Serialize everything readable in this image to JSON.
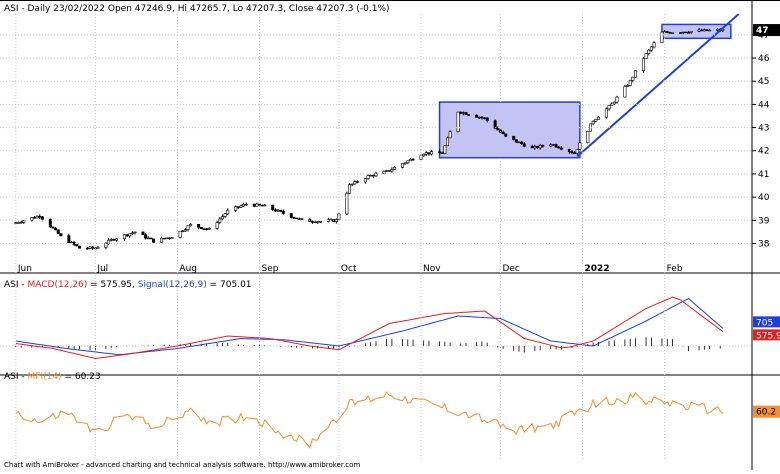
{
  "header": {
    "main": "ASI - Daily 23/02/2022 Open 47246.9, Hi 47265.7, Lo 47207.3, Close 47207.3 (-0.1%)",
    "macd_prefix": "ASI - ",
    "macd_name": "MACD(12,26)",
    "macd_value": " = 575.95, ",
    "signal_name": "Signal(12,26,9)",
    "signal_value": " = 705.01",
    "mfi_prefix": "ASI - ",
    "mfi_name": "MFI(14)",
    "mfi_value": " = 60.23"
  },
  "footer": "Chart with AmiBroker - advanced charting and technical analysis software. http://www.amibroker.com",
  "colors": {
    "up": "#ffffff",
    "down": "#000000",
    "macd": "#e02020",
    "signal": "#1f3fdd",
    "mfi": "#f09030",
    "box_fill": "#b8b8f4",
    "box_stroke": "#1f3fdd",
    "trendline": "#1f3fdd"
  },
  "chart_data": [
    {
      "type": "candlestick",
      "title": "ASI - Daily 23/02/2022",
      "x_tick_labels": [
        "Jun",
        "Jul",
        "Aug",
        "Sep",
        "Oct",
        "Nov",
        "Dec",
        "2022",
        "Feb"
      ],
      "y_tick_labels": [
        "38",
        "39",
        "40",
        "41",
        "42",
        "43",
        "44",
        "45",
        "46",
        "47"
      ],
      "last_value_label": "47",
      "ylim": [
        37200,
        47900
      ],
      "path_points": [
        {
          "d": "2021-06-01",
          "v": 38900
        },
        {
          "d": "2021-06-10",
          "v": 39200
        },
        {
          "d": "2021-06-18",
          "v": 38300
        },
        {
          "d": "2021-06-25",
          "v": 37800
        },
        {
          "d": "2021-07-01",
          "v": 37800
        },
        {
          "d": "2021-07-08",
          "v": 38200
        },
        {
          "d": "2021-07-16",
          "v": 38500
        },
        {
          "d": "2021-07-23",
          "v": 38100
        },
        {
          "d": "2021-07-30",
          "v": 38300
        },
        {
          "d": "2021-08-06",
          "v": 38800
        },
        {
          "d": "2021-08-13",
          "v": 38600
        },
        {
          "d": "2021-08-20",
          "v": 39400
        },
        {
          "d": "2021-08-27",
          "v": 39700
        },
        {
          "d": "2021-09-03",
          "v": 39600
        },
        {
          "d": "2021-09-10",
          "v": 39300
        },
        {
          "d": "2021-09-17",
          "v": 39000
        },
        {
          "d": "2021-09-24",
          "v": 38950
        },
        {
          "d": "2021-09-30",
          "v": 39000
        },
        {
          "d": "2021-10-05",
          "v": 40500
        },
        {
          "d": "2021-10-12",
          "v": 40900
        },
        {
          "d": "2021-10-19",
          "v": 41100
        },
        {
          "d": "2021-10-26",
          "v": 41500
        },
        {
          "d": "2021-11-02",
          "v": 41900
        },
        {
          "d": "2021-11-09",
          "v": 41900
        },
        {
          "d": "2021-11-15",
          "v": 43700
        },
        {
          "d": "2021-11-25",
          "v": 43400
        },
        {
          "d": "2021-12-03",
          "v": 42600
        },
        {
          "d": "2021-12-13",
          "v": 42100
        },
        {
          "d": "2021-12-20",
          "v": 42300
        },
        {
          "d": "2021-12-29",
          "v": 41900
        },
        {
          "d": "2022-01-05",
          "v": 43300
        },
        {
          "d": "2022-01-12",
          "v": 44000
        },
        {
          "d": "2022-01-19",
          "v": 45000
        },
        {
          "d": "2022-01-24",
          "v": 46000
        },
        {
          "d": "2022-01-31",
          "v": 47100
        },
        {
          "d": "2022-02-10",
          "v": 47150
        },
        {
          "d": "2022-02-23",
          "v": 47207
        }
      ],
      "rectangles": [
        {
          "from": "2021-11-08",
          "to": "2021-12-31",
          "low": 41700,
          "high": 44100
        },
        {
          "from": "2022-01-31",
          "to": "2022-02-26",
          "low": 46850,
          "high": 47450
        }
      ],
      "trendline": {
        "from": {
          "d": "2021-12-30",
          "v": 41750
        },
        "to": {
          "d": "2022-03-01",
          "v": 47900
        }
      }
    },
    {
      "type": "line",
      "series": [
        {
          "name": "MACD(12,26)",
          "value_label": "575.95",
          "points": [
            {
              "d": "2021-06-01",
              "v": 100
            },
            {
              "d": "2021-06-15",
              "v": -100
            },
            {
              "d": "2021-07-01",
              "v": -500
            },
            {
              "d": "2021-07-15",
              "v": -300
            },
            {
              "d": "2021-08-01",
              "v": 0
            },
            {
              "d": "2021-08-20",
              "v": 400
            },
            {
              "d": "2021-09-05",
              "v": 300
            },
            {
              "d": "2021-09-20",
              "v": 0
            },
            {
              "d": "2021-10-01",
              "v": -150
            },
            {
              "d": "2021-10-20",
              "v": 900
            },
            {
              "d": "2021-11-10",
              "v": 1300
            },
            {
              "d": "2021-11-25",
              "v": 1400
            },
            {
              "d": "2021-12-10",
              "v": 300
            },
            {
              "d": "2021-12-25",
              "v": -100
            },
            {
              "d": "2022-01-05",
              "v": 200
            },
            {
              "d": "2022-01-25",
              "v": 1500
            },
            {
              "d": "2022-02-05",
              "v": 2000
            },
            {
              "d": "2022-02-23",
              "v": 576
            }
          ]
        },
        {
          "name": "Signal(12,26,9)",
          "value_label": "705",
          "points": [
            {
              "d": "2021-06-01",
              "v": 200
            },
            {
              "d": "2021-06-20",
              "v": -100
            },
            {
              "d": "2021-07-10",
              "v": -350
            },
            {
              "d": "2021-08-01",
              "v": -100
            },
            {
              "d": "2021-08-25",
              "v": 300
            },
            {
              "d": "2021-09-10",
              "v": 250
            },
            {
              "d": "2021-10-01",
              "v": 0
            },
            {
              "d": "2021-10-25",
              "v": 600
            },
            {
              "d": "2021-11-15",
              "v": 1200
            },
            {
              "d": "2021-12-01",
              "v": 1100
            },
            {
              "d": "2021-12-20",
              "v": 200
            },
            {
              "d": "2022-01-05",
              "v": 0
            },
            {
              "d": "2022-01-25",
              "v": 1000
            },
            {
              "d": "2022-02-10",
              "v": 1900
            },
            {
              "d": "2022-02-23",
              "v": 705
            }
          ]
        }
      ],
      "histogram_ylim": [
        -800,
        2200
      ]
    },
    {
      "type": "line",
      "series": [
        {
          "name": "MFI(14)",
          "value_label": "60.2",
          "points": [
            {
              "d": "2021-06-01",
              "v": 60
            },
            {
              "d": "2021-06-10",
              "v": 45
            },
            {
              "d": "2021-06-20",
              "v": 60
            },
            {
              "d": "2021-07-01",
              "v": 30
            },
            {
              "d": "2021-07-12",
              "v": 55
            },
            {
              "d": "2021-07-25",
              "v": 40
            },
            {
              "d": "2021-08-05",
              "v": 60
            },
            {
              "d": "2021-08-15",
              "v": 45
            },
            {
              "d": "2021-08-28",
              "v": 55
            },
            {
              "d": "2021-09-10",
              "v": 30
            },
            {
              "d": "2021-09-20",
              "v": 15
            },
            {
              "d": "2021-10-05",
              "v": 70
            },
            {
              "d": "2021-10-20",
              "v": 85
            },
            {
              "d": "2021-11-05",
              "v": 70
            },
            {
              "d": "2021-11-20",
              "v": 55
            },
            {
              "d": "2021-12-05",
              "v": 35
            },
            {
              "d": "2021-12-20",
              "v": 40
            },
            {
              "d": "2022-01-05",
              "v": 70
            },
            {
              "d": "2022-01-20",
              "v": 80
            },
            {
              "d": "2022-02-05",
              "v": 70
            },
            {
              "d": "2022-02-23",
              "v": 60.2
            }
          ]
        }
      ],
      "ylim": [
        0,
        100
      ]
    }
  ]
}
